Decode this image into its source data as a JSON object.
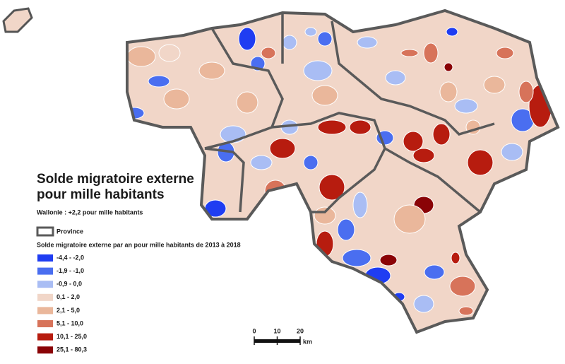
{
  "map": {
    "title": [
      "Solde migratoire externe",
      "pour mille habitants"
    ],
    "subtitle": "Wallonie : +2,2 pour mille habitants",
    "province_legend": "Province",
    "legend_title": "Solde migratoire externe par an pour mille habitants de 2013 à 2018",
    "classes": [
      {
        "label": "-4,4 - -2,0",
        "color": "#1f3df2"
      },
      {
        "label": "-1,9 - -1,0",
        "color": "#4a6ef0"
      },
      {
        "label": "-0,9 - 0,0",
        "color": "#a9bdf4"
      },
      {
        "label": "0,1 - 2,0",
        "color": "#f1d6c8"
      },
      {
        "label": "2,1 - 5,0",
        "color": "#eab79b"
      },
      {
        "label": "5,1 - 10,0",
        "color": "#d7735a"
      },
      {
        "label": "10,1 - 25,0",
        "color": "#b71c0f"
      },
      {
        "label": "25,1 - 80,3",
        "color": "#8a0306"
      }
    ],
    "scale_bar": {
      "ticks": [
        0,
        10,
        20
      ],
      "unit": "km"
    }
  }
}
